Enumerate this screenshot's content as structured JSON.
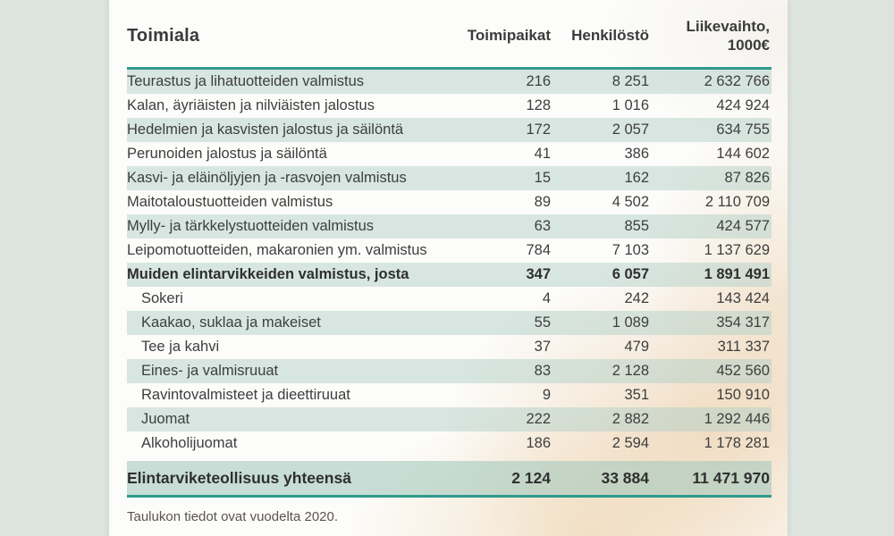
{
  "header": {
    "col_industry": "Toimiala",
    "col_establishments": "Toimipaikat",
    "col_personnel": "Henkilöstö",
    "col_turnover_line1": "Liikevaihto,",
    "col_turnover_line2": "1000€"
  },
  "table": {
    "rows": [
      {
        "name": "Teurastus ja lihatuotteiden valmistus",
        "establishments": "216",
        "personnel": "8 251",
        "turnover": "2 632 766",
        "bold": false,
        "indent": false
      },
      {
        "name": "Kalan, äyriäisten ja nilviäisten jalostus",
        "establishments": "128",
        "personnel": "1 016",
        "turnover": "424 924",
        "bold": false,
        "indent": false
      },
      {
        "name": "Hedelmien ja kasvisten jalostus ja säilöntä",
        "establishments": "172",
        "personnel": "2 057",
        "turnover": "634 755",
        "bold": false,
        "indent": false
      },
      {
        "name": "Perunoiden jalostus ja säilöntä",
        "establishments": "41",
        "personnel": "386",
        "turnover": "144 602",
        "bold": false,
        "indent": false
      },
      {
        "name": "Kasvi- ja eläinöljyjen ja -rasvojen valmistus",
        "establishments": "15",
        "personnel": "162",
        "turnover": "87 826",
        "bold": false,
        "indent": false
      },
      {
        "name": "Maitotaloustuotteiden valmistus",
        "establishments": "89",
        "personnel": "4 502",
        "turnover": "2 110 709",
        "bold": false,
        "indent": false
      },
      {
        "name": "Mylly- ja tärkkelystuotteiden valmistus",
        "establishments": "63",
        "personnel": "855",
        "turnover": "424 577",
        "bold": false,
        "indent": false
      },
      {
        "name": "Leipomotuotteiden, makaronien ym. valmistus",
        "establishments": "784",
        "personnel": "7 103",
        "turnover": "1 137 629",
        "bold": false,
        "indent": false
      },
      {
        "name": "Muiden elintarvikkeiden valmistus, josta",
        "establishments": "347",
        "personnel": "6 057",
        "turnover": "1 891 491",
        "bold": true,
        "indent": false
      },
      {
        "name": "Sokeri",
        "establishments": "4",
        "personnel": "242",
        "turnover": "143 424",
        "bold": false,
        "indent": true
      },
      {
        "name": "Kaakao, suklaa ja makeiset",
        "establishments": "55",
        "personnel": "1 089",
        "turnover": "354 317",
        "bold": false,
        "indent": true
      },
      {
        "name": "Tee ja kahvi",
        "establishments": "37",
        "personnel": "479",
        "turnover": "311 337",
        "bold": false,
        "indent": true
      },
      {
        "name": "Eines- ja valmisruuat",
        "establishments": "83",
        "personnel": "2 128",
        "turnover": "452 560",
        "bold": false,
        "indent": true
      },
      {
        "name": "Ravintovalmisteet ja dieettiruuat",
        "establishments": "9",
        "personnel": "351",
        "turnover": "150 910",
        "bold": false,
        "indent": true
      },
      {
        "name": "Juomat",
        "establishments": "222",
        "personnel": "2 882",
        "turnover": "1 292 446",
        "bold": false,
        "indent": true
      },
      {
        "name": "Alkoholijuomat",
        "establishments": "186",
        "personnel": "2 594",
        "turnover": "1 178 281",
        "bold": false,
        "indent": true
      }
    ],
    "total": {
      "name": "Elintarviketeollisuus yhteensä",
      "establishments": "2 124",
      "personnel": "33 884",
      "turnover": "11 471 970"
    }
  },
  "footer": {
    "note": "Taulukon tiedot ovat vuodelta 2020."
  },
  "colors": {
    "accent_teal": "#2e9a8c",
    "row_stripe": "#d7e5e0",
    "page_background": "#dde4e0",
    "card_background": "#fcfcfa",
    "warm_photo_tint": "#eed9bf"
  },
  "chart_data": {
    "type": "table",
    "title": "",
    "columns": [
      "Toimiala",
      "Toimipaikat",
      "Henkilöstö",
      "Liikevaihto, 1000€"
    ],
    "rows": [
      [
        "Teurastus ja lihatuotteiden valmistus",
        216,
        8251,
        2632766
      ],
      [
        "Kalan, äyriäisten ja nilviäisten jalostus",
        128,
        1016,
        424924
      ],
      [
        "Hedelmien ja kasvisten jalostus ja säilöntä",
        172,
        2057,
        634755
      ],
      [
        "Perunoiden jalostus ja säilöntä",
        41,
        386,
        144602
      ],
      [
        "Kasvi- ja eläinöljyjen ja -rasvojen valmistus",
        15,
        162,
        87826
      ],
      [
        "Maitotaloustuotteiden valmistus",
        89,
        4502,
        2110709
      ],
      [
        "Mylly- ja tärkkelystuotteiden valmistus",
        63,
        855,
        424577
      ],
      [
        "Leipomotuotteiden, makaronien ym. valmistus",
        784,
        7103,
        1137629
      ],
      [
        "Muiden elintarvikkeiden valmistus, josta",
        347,
        6057,
        1891491
      ],
      [
        "Sokeri",
        4,
        242,
        143424
      ],
      [
        "Kaakao, suklaa ja makeiset",
        55,
        1089,
        354317
      ],
      [
        "Tee ja kahvi",
        37,
        479,
        311337
      ],
      [
        "Eines- ja valmisruuat",
        83,
        2128,
        452560
      ],
      [
        "Ravintovalmisteet ja dieettiruuat",
        9,
        351,
        150910
      ],
      [
        "Juomat",
        222,
        2882,
        1292446
      ],
      [
        "Alkoholijuomat",
        186,
        2594,
        1178281
      ]
    ],
    "total_row": [
      "Elintarviketeollisuus yhteensä",
      2124,
      33884,
      11471970
    ],
    "note": "Taulukon tiedot ovat vuodelta 2020.",
    "layout": "sub-rows Sokeri through Alkoholijuomat are indented children; alternating mint row stripes starting at first data row; teal rule above first row and below total row"
  }
}
